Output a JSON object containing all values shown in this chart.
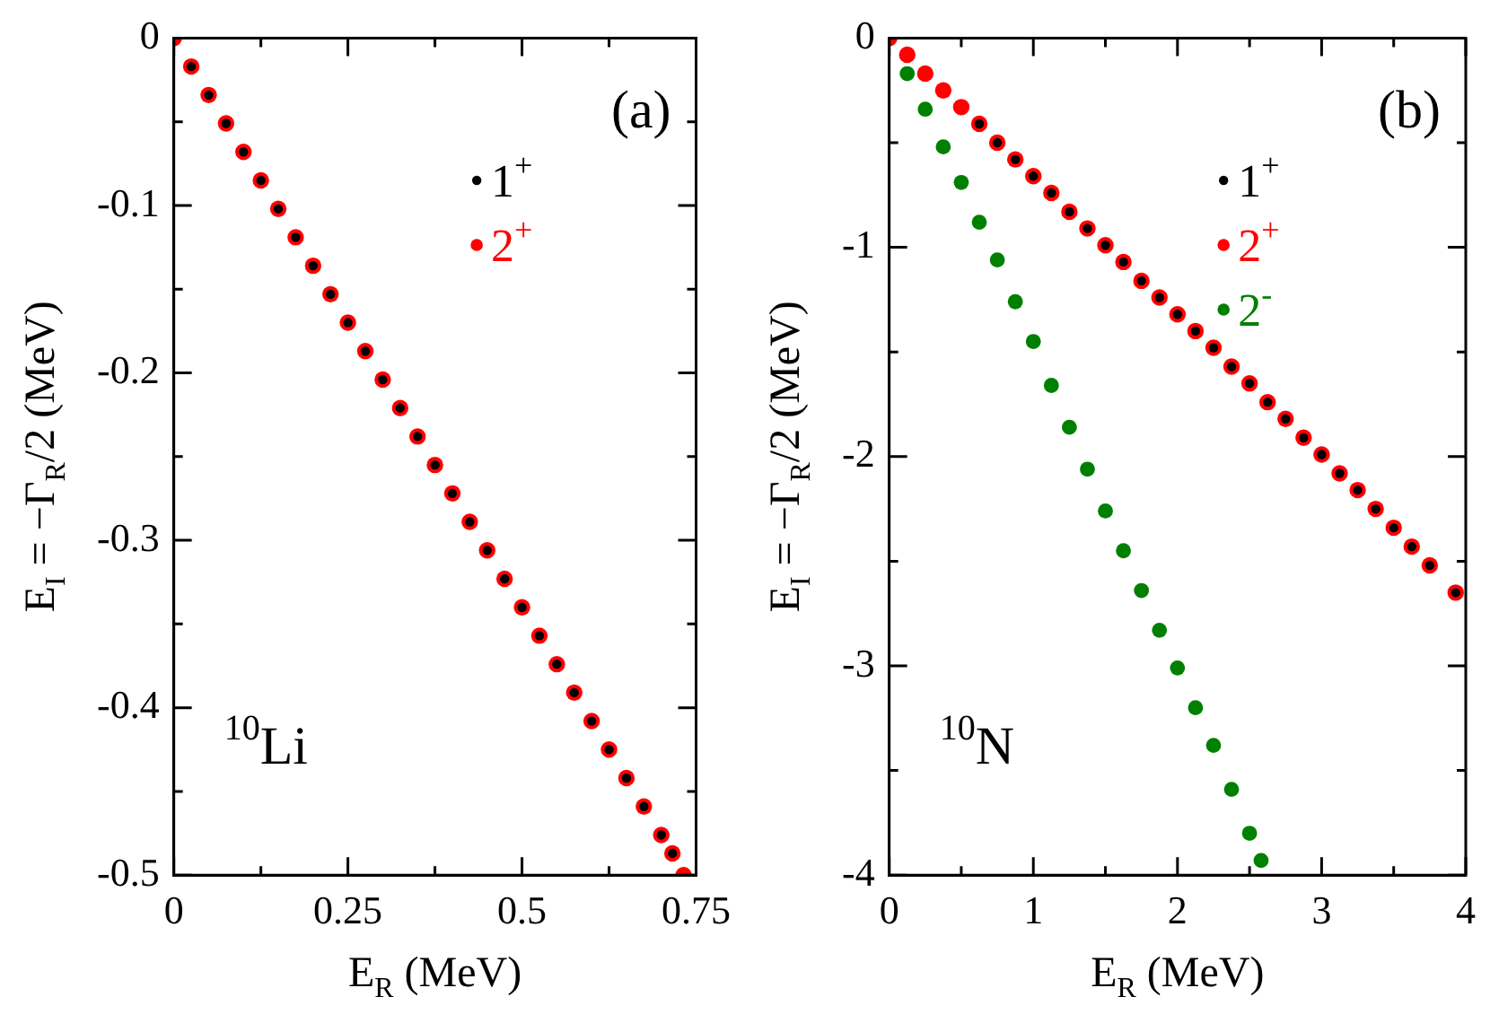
{
  "chart_data": [
    {
      "type": "scatter",
      "xlabel": "E$_{R}$ (MeV)",
      "ylabel": "E$_{I}$ = −Γ$_{R}$/2 (MeV)",
      "xlim": [
        0,
        0.75
      ],
      "ylim": [
        -0.5,
        0
      ],
      "xticks": [
        0,
        {
          "value": 0.125,
          "label": null
        },
        0.25,
        {
          "value": 0.375,
          "label": null
        },
        0.5,
        {
          "value": 0.625,
          "label": null
        },
        0.75
      ],
      "yticks": [
        -0.5,
        {
          "value": -0.45,
          "label": null
        },
        -0.4,
        {
          "value": -0.35,
          "label": null
        },
        -0.3,
        {
          "value": -0.25,
          "label": null
        },
        -0.2,
        {
          "value": -0.15,
          "label": null
        },
        -0.1,
        {
          "value": -0.05,
          "label": null
        },
        0
      ],
      "marker": "circle",
      "legend": "top right",
      "annotations": [
        "(a)",
        "$^{10}$Li"
      ],
      "series": [
        {
          "name": "1$^{+}$",
          "color": "#000000",
          "x": [
            0.025,
            0.05,
            0.075,
            0.1,
            0.125,
            0.15,
            0.175,
            0.2,
            0.225,
            0.25,
            0.275,
            0.3,
            0.325,
            0.35,
            0.375,
            0.4,
            0.425,
            0.45,
            0.475,
            0.5,
            0.525,
            0.55,
            0.575,
            0.6,
            0.625,
            0.65,
            0.675,
            0.7,
            0.716
          ],
          "values": [
            -0.017,
            -0.034,
            -0.051,
            -0.068,
            -0.085,
            -0.102,
            -0.119,
            -0.136,
            -0.153,
            -0.17,
            -0.187,
            -0.204,
            -0.221,
            -0.238,
            -0.255,
            -0.272,
            -0.289,
            -0.306,
            -0.323,
            -0.34,
            -0.357,
            -0.374,
            -0.391,
            -0.408,
            -0.425,
            -0.442,
            -0.459,
            -0.476,
            -0.487
          ]
        },
        {
          "name": "2$^{+}$",
          "color": "#ff0000",
          "x": [
            0,
            0.025,
            0.05,
            0.075,
            0.1,
            0.125,
            0.15,
            0.175,
            0.2,
            0.225,
            0.25,
            0.275,
            0.3,
            0.325,
            0.35,
            0.375,
            0.4,
            0.425,
            0.45,
            0.475,
            0.5,
            0.525,
            0.55,
            0.575,
            0.6,
            0.625,
            0.65,
            0.675,
            0.7,
            0.716,
            0.732
          ],
          "values": [
            0,
            -0.017,
            -0.034,
            -0.051,
            -0.068,
            -0.085,
            -0.102,
            -0.119,
            -0.136,
            -0.153,
            -0.17,
            -0.187,
            -0.204,
            -0.221,
            -0.238,
            -0.255,
            -0.272,
            -0.289,
            -0.306,
            -0.323,
            -0.34,
            -0.357,
            -0.374,
            -0.391,
            -0.408,
            -0.425,
            -0.442,
            -0.459,
            -0.476,
            -0.487,
            -0.5
          ]
        }
      ]
    },
    {
      "type": "scatter",
      "xlabel": "E$_{R}$ (MeV)",
      "ylabel": "E$_{I}$ = −Γ$_{R}$/2 (MeV)",
      "xlim": [
        0,
        4
      ],
      "ylim": [
        -4,
        0
      ],
      "xticks": [
        0,
        {
          "value": 0.5,
          "label": null
        },
        1,
        {
          "value": 1.5,
          "label": null
        },
        2,
        {
          "value": 2.5,
          "label": null
        },
        3,
        {
          "value": 3.5,
          "label": null
        },
        4
      ],
      "yticks": [
        -4,
        {
          "value": -3.5,
          "label": null
        },
        -3,
        {
          "value": -2.5,
          "label": null
        },
        -2,
        {
          "value": -1.5,
          "label": null
        },
        -1,
        {
          "value": -0.5,
          "label": null
        },
        0
      ],
      "marker": "circle",
      "legend": "top right",
      "annotations": [
        "(b)",
        "$^{10}$N"
      ],
      "series": [
        {
          "name": "1$^{+}$",
          "color": "#000000",
          "x": [
            0.625,
            0.75,
            0.875,
            1,
            1.125,
            1.25,
            1.375,
            1.5,
            1.625,
            1.75,
            1.875,
            2,
            2.125,
            2.25,
            2.375,
            2.5,
            2.625,
            2.75,
            2.875,
            3,
            3.125,
            3.25,
            3.375,
            3.5,
            3.625,
            3.75,
            3.93
          ],
          "values": [
            -0.41,
            -0.5,
            -0.58,
            -0.66,
            -0.74,
            -0.83,
            -0.91,
            -0.99,
            -1.07,
            -1.16,
            -1.24,
            -1.32,
            -1.4,
            -1.48,
            -1.57,
            -1.65,
            -1.74,
            -1.82,
            -1.91,
            -1.99,
            -2.08,
            -2.16,
            -2.25,
            -2.34,
            -2.43,
            -2.52,
            -2.65
          ]
        },
        {
          "name": "2$^{+}$",
          "color": "#ff0000",
          "x": [
            0,
            0.125,
            0.25,
            0.375,
            0.5,
            0.625,
            0.75,
            0.875,
            1,
            1.125,
            1.25,
            1.375,
            1.5,
            1.625,
            1.75,
            1.875,
            2,
            2.125,
            2.25,
            2.375,
            2.5,
            2.625,
            2.75,
            2.875,
            3,
            3.125,
            3.25,
            3.375,
            3.5,
            3.625,
            3.75,
            3.93
          ],
          "values": [
            0,
            -0.08,
            -0.17,
            -0.25,
            -0.33,
            -0.41,
            -0.5,
            -0.58,
            -0.66,
            -0.74,
            -0.83,
            -0.91,
            -0.99,
            -1.07,
            -1.16,
            -1.24,
            -1.32,
            -1.4,
            -1.48,
            -1.57,
            -1.65,
            -1.74,
            -1.82,
            -1.91,
            -1.99,
            -2.08,
            -2.16,
            -2.25,
            -2.34,
            -2.43,
            -2.52,
            -2.65
          ]
        },
        {
          "name": "2$^{-}$",
          "color": "#008000",
          "x": [
            0.125,
            0.25,
            0.375,
            0.5,
            0.625,
            0.75,
            0.875,
            1,
            1.125,
            1.25,
            1.375,
            1.5,
            1.625,
            1.75,
            1.875,
            2,
            2.125,
            2.25,
            2.375,
            2.5,
            2.58
          ],
          "values": [
            -0.17,
            -0.34,
            -0.52,
            -0.69,
            -0.88,
            -1.06,
            -1.26,
            -1.45,
            -1.66,
            -1.86,
            -2.06,
            -2.26,
            -2.45,
            -2.64,
            -2.83,
            -3.01,
            -3.2,
            -3.38,
            -3.59,
            -3.8,
            -3.93
          ]
        }
      ]
    }
  ]
}
